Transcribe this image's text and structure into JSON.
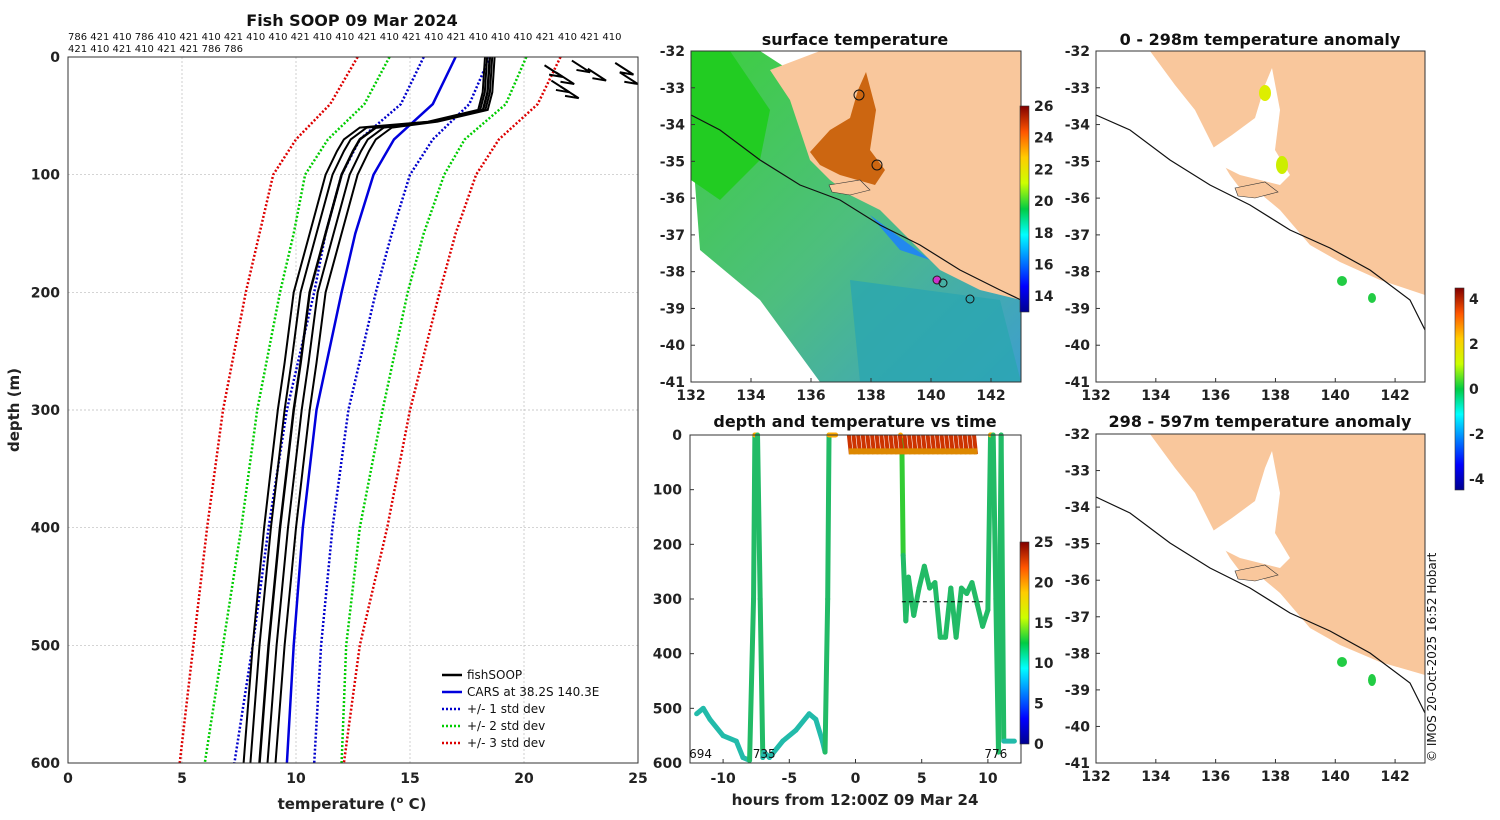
{
  "chart_data": [
    {
      "type": "line",
      "title": "Fish SOOP 09 Mar 2024",
      "xlabel": "temperature (o C)",
      "ylabel": "depth (m)",
      "xlim": [
        0,
        25
      ],
      "ylim": [
        600,
        0
      ],
      "xticks": [
        "0",
        "5",
        "10",
        "15",
        "20",
        "25"
      ],
      "yticks": [
        "0",
        "100",
        "200",
        "300",
        "400",
        "500",
        "600"
      ],
      "header_ids_line1": "786 421 410 786 410 421 410 421 410 410 421 410 410 421 410 421 410 421 410 410 410 421 410 421 410",
      "header_ids_line2": "421 410 421 410 421 421 786 786",
      "legend": [
        "fishSOOP",
        "CARS at 38.2S 140.3E",
        "+/- 1 std dev",
        "+/- 2 std dev",
        "+/- 3 std dev"
      ],
      "series": [
        {
          "name": "CARS at 38.2S 140.3E",
          "depth": [
            0,
            40,
            70,
            100,
            150,
            200,
            300,
            400,
            500,
            600
          ],
          "temp": [
            17.0,
            16.0,
            14.3,
            13.4,
            12.6,
            12.0,
            10.9,
            10.3,
            9.9,
            9.6
          ]
        },
        {
          "name": "+1 std dev",
          "depth": [
            0,
            40,
            70,
            100,
            150,
            200,
            300,
            400,
            500,
            600
          ],
          "temp": [
            15.6,
            14.6,
            12.8,
            12.0,
            11.3,
            10.8,
            9.6,
            8.8,
            8.1,
            7.3
          ]
        },
        {
          "name": "-1 std dev",
          "depth": [
            0,
            40,
            70,
            100,
            150,
            200,
            300,
            400,
            500,
            600
          ],
          "temp": [
            18.5,
            17.6,
            16.0,
            15.0,
            14.2,
            13.5,
            12.3,
            11.6,
            11.1,
            10.8
          ]
        },
        {
          "name": "+2 std dev",
          "depth": [
            0,
            40,
            70,
            100,
            150,
            200,
            300,
            400,
            500,
            600
          ],
          "temp": [
            14.1,
            13.0,
            11.4,
            10.4,
            9.9,
            9.3,
            8.3,
            7.6,
            6.8,
            6.0
          ]
        },
        {
          "name": "-2 std dev",
          "depth": [
            0,
            40,
            70,
            100,
            150,
            200,
            300,
            400,
            500,
            600
          ],
          "temp": [
            20.1,
            19.2,
            17.4,
            16.5,
            15.6,
            14.9,
            13.8,
            12.8,
            12.2,
            12.0
          ]
        },
        {
          "name": "+3 std dev",
          "depth": [
            0,
            40,
            70,
            100,
            150,
            200,
            300,
            400,
            500,
            600
          ],
          "temp": [
            12.7,
            11.5,
            10.0,
            9.0,
            8.4,
            7.8,
            6.8,
            6.1,
            5.5,
            4.9
          ]
        },
        {
          "name": "-3 std dev",
          "depth": [
            0,
            20,
            40,
            70,
            100,
            150,
            200,
            300,
            400,
            500,
            600
          ],
          "temp": [
            21.6,
            21.1,
            20.6,
            18.9,
            17.9,
            17.0,
            16.3,
            15.0,
            14.0,
            12.8,
            12.1
          ]
        },
        {
          "name": "fishSOOP profile",
          "depth": [
            0,
            30,
            45,
            55,
            60,
            70,
            80,
            100,
            150,
            200,
            260,
            300,
            350,
            400,
            500,
            600
          ],
          "temp": [
            18.5,
            18.4,
            18.2,
            16.0,
            13.5,
            12.8,
            12.5,
            12.0,
            11.3,
            10.6,
            10.2,
            9.9,
            9.6,
            9.3,
            8.8,
            8.4
          ]
        }
      ]
    },
    {
      "type": "heatmap",
      "title": "surface temperature",
      "xlim": [
        132,
        143
      ],
      "ylim": [
        -41,
        -32
      ],
      "xticks": [
        "132",
        "134",
        "136",
        "138",
        "140",
        "142"
      ],
      "yticks": [
        "-32",
        "-33",
        "-34",
        "-35",
        "-36",
        "-37",
        "-38",
        "-39",
        "-40",
        "-41"
      ],
      "colorbar_ticks": [
        "26",
        "24",
        "22",
        "20",
        "18",
        "16",
        "14"
      ],
      "colorbar_range": [
        13,
        26
      ]
    },
    {
      "type": "scatter",
      "title": "depth and temperature vs time",
      "xlabel": "hours from 12:00Z 09 Mar 24",
      "xlim": [
        -12.5,
        12.5
      ],
      "ylim": [
        600,
        0
      ],
      "xticks": [
        "-10",
        "-5",
        "0",
        "5",
        "10"
      ],
      "yticks": [
        "0",
        "100",
        "200",
        "300",
        "400",
        "500",
        "600"
      ],
      "colorbar_ticks": [
        "25",
        "20",
        "15",
        "10",
        "5",
        "0"
      ],
      "colorbar_range": [
        0,
        25
      ],
      "dive_labels": [
        {
          "text": "694",
          "hour": -11.7
        },
        {
          "text": "735",
          "hour": -6.9
        },
        {
          "text": "776",
          "hour": 10.6
        }
      ],
      "track": {
        "hours": [
          -12.0,
          -11.5,
          -11.0,
          -10.0,
          -9.0,
          -8.5,
          -8.0,
          -7.7,
          -7.6,
          -7.4,
          -7.2,
          -7.0,
          -6.9,
          -6.5,
          -5.5,
          -4.5,
          -3.5,
          -3.0,
          -2.5,
          -2.3,
          -2.1,
          -2.0,
          -1.9,
          -1.7,
          -1.5
        ],
        "depth": [
          510,
          500,
          520,
          550,
          560,
          590,
          595,
          300,
          0,
          0,
          300,
          590,
          580,
          590,
          560,
          540,
          510,
          520,
          560,
          580,
          300,
          0,
          0,
          0,
          0
        ]
      },
      "track2": {
        "hours": [
          3.4,
          3.5,
          3.6,
          3.8,
          4.0,
          4.4,
          4.8,
          5.2,
          5.6,
          6.0,
          6.4,
          6.8,
          7.2,
          7.6,
          8.0,
          8.4,
          8.8,
          9.2,
          9.6,
          10.0,
          10.2,
          10.4,
          10.6,
          10.8,
          11.0,
          11.2,
          12.0
        ],
        "depth": [
          0,
          10,
          220,
          340,
          260,
          330,
          280,
          240,
          280,
          270,
          370,
          370,
          280,
          370,
          280,
          290,
          270,
          310,
          350,
          320,
          0,
          0,
          300,
          580,
          0,
          560,
          560
        ]
      }
    },
    {
      "type": "heatmap",
      "title": "0 - 298m temperature anomaly",
      "xlim": [
        132,
        143
      ],
      "ylim": [
        -41,
        -32
      ],
      "xticks": [
        "132",
        "134",
        "136",
        "138",
        "140",
        "142"
      ],
      "yticks": [
        "-32",
        "-33",
        "-34",
        "-35",
        "-36",
        "-37",
        "-38",
        "-39",
        "-40",
        "-41"
      ]
    },
    {
      "type": "heatmap",
      "title": "298 - 597m temperature anomaly",
      "xlim": [
        132,
        143
      ],
      "ylim": [
        -41,
        -32
      ],
      "xticks": [
        "132",
        "134",
        "136",
        "138",
        "140",
        "142"
      ],
      "yticks": [
        "-32",
        "-33",
        "-34",
        "-35",
        "-36",
        "-37",
        "-38",
        "-39",
        "-40",
        "-41"
      ],
      "colorbar_ticks": [
        "4",
        "2",
        "0",
        "-2",
        "-4"
      ],
      "colorbar_range": [
        -4.5,
        4.5
      ]
    }
  ],
  "credit": "© IMOS 20-Oct-2025 16:52 Hobart",
  "colors": {
    "land": "#f9c79c",
    "fish": "#000000",
    "cars": "#0000dd",
    "std1": "#0000cc",
    "std2": "#00cc00",
    "std3": "#dd0000"
  }
}
